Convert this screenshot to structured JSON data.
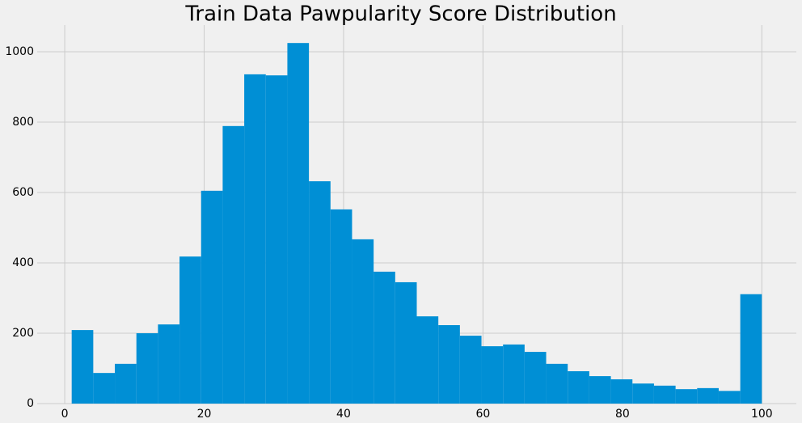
{
  "chart_data": {
    "type": "histogram",
    "title": "Train Data Pawpularity Score Distribution",
    "bins": [
      1,
      4.09375,
      7.1875,
      10.28125,
      13.375,
      16.46875,
      19.5625,
      22.65625,
      25.75,
      28.84375,
      31.9375,
      35.03125,
      38.125,
      41.21875,
      44.3125,
      47.40625,
      50.5,
      53.59375,
      56.6875,
      59.78125,
      62.875,
      65.96875,
      69.0625,
      72.15625,
      75.25,
      78.34375,
      81.4375,
      84.53125,
      87.625,
      90.71875,
      93.8125,
      96.90625,
      100
    ],
    "values": [
      209,
      87,
      113,
      200,
      225,
      418,
      605,
      789,
      936,
      933,
      1025,
      632,
      552,
      467,
      375,
      345,
      248,
      223,
      193,
      163,
      168,
      147,
      113,
      92,
      78,
      69,
      57,
      51,
      41,
      44,
      36,
      311
    ],
    "color": "#008fd5",
    "xlim": [
      -3.95,
      104.95
    ],
    "xticks": [
      0,
      20,
      40,
      60,
      80,
      100
    ],
    "ylim": [
      0,
      1076
    ],
    "yticks": [
      0,
      200,
      400,
      600,
      800,
      1000
    ],
    "grid": true
  }
}
